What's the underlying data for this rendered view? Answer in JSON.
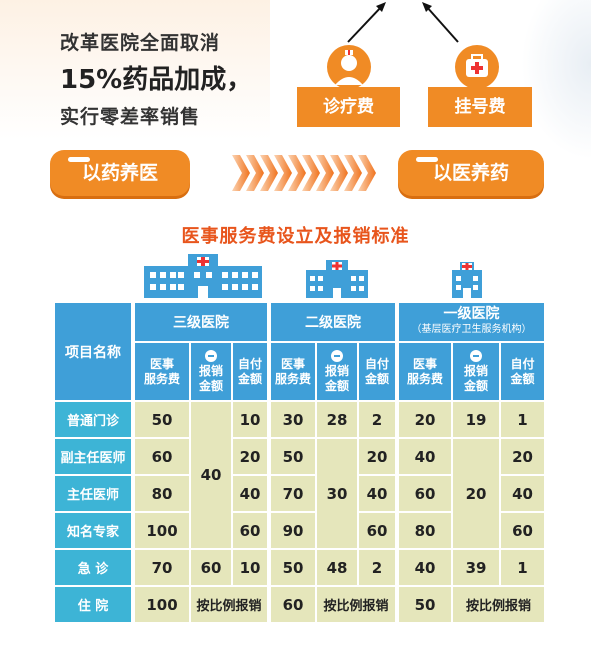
{
  "reform": {
    "line1": "改革医院全面取消",
    "line2": "15%药品加成，",
    "line3": "实行零差率销售"
  },
  "fees": {
    "consult": "诊疗费",
    "register": "挂号费"
  },
  "policy": {
    "from": "以药养医",
    "to": "以医养药"
  },
  "title": "医事服务费设立及报销标准",
  "table": {
    "item_header": "项目名称",
    "levels": [
      {
        "name": "三级医院",
        "note": ""
      },
      {
        "name": "二级医院",
        "note": ""
      },
      {
        "name": "一级医院",
        "note": "（基层医疗卫生服务机构）"
      }
    ],
    "sub": {
      "service": [
        "医事",
        "服务费"
      ],
      "reimb": [
        "报销",
        "金额"
      ],
      "self": [
        "自付",
        "金额"
      ]
    },
    "rows": [
      {
        "label": "普通门诊",
        "l3": [
          "50",
          "10"
        ],
        "l2": [
          "30",
          "28",
          "2"
        ],
        "l1": [
          "20",
          "19",
          "1"
        ]
      },
      {
        "label": "副主任医师",
        "l3": [
          "60",
          "20"
        ],
        "l2": [
          "50",
          "20"
        ],
        "l1": [
          "40",
          "20"
        ]
      },
      {
        "label": "主任医师",
        "l3": [
          "80",
          "40",
          "40"
        ],
        "l2": [
          "70",
          "30",
          "40"
        ],
        "l1": [
          "60",
          "20",
          "40"
        ]
      },
      {
        "label": "知名专家",
        "l3": [
          "100",
          "60"
        ],
        "l2": [
          "90",
          "60"
        ],
        "l1": [
          "80",
          "60"
        ]
      },
      {
        "label": "急 诊",
        "l3": [
          "70",
          "60",
          "10"
        ],
        "l2": [
          "50",
          "48",
          "2"
        ],
        "l1": [
          "40",
          "39",
          "1"
        ]
      },
      {
        "label": "住 院",
        "l3": [
          "100"
        ],
        "l2": [
          "60"
        ],
        "l1": [
          "50"
        ],
        "ratio": "按比例报销"
      }
    ]
  }
}
